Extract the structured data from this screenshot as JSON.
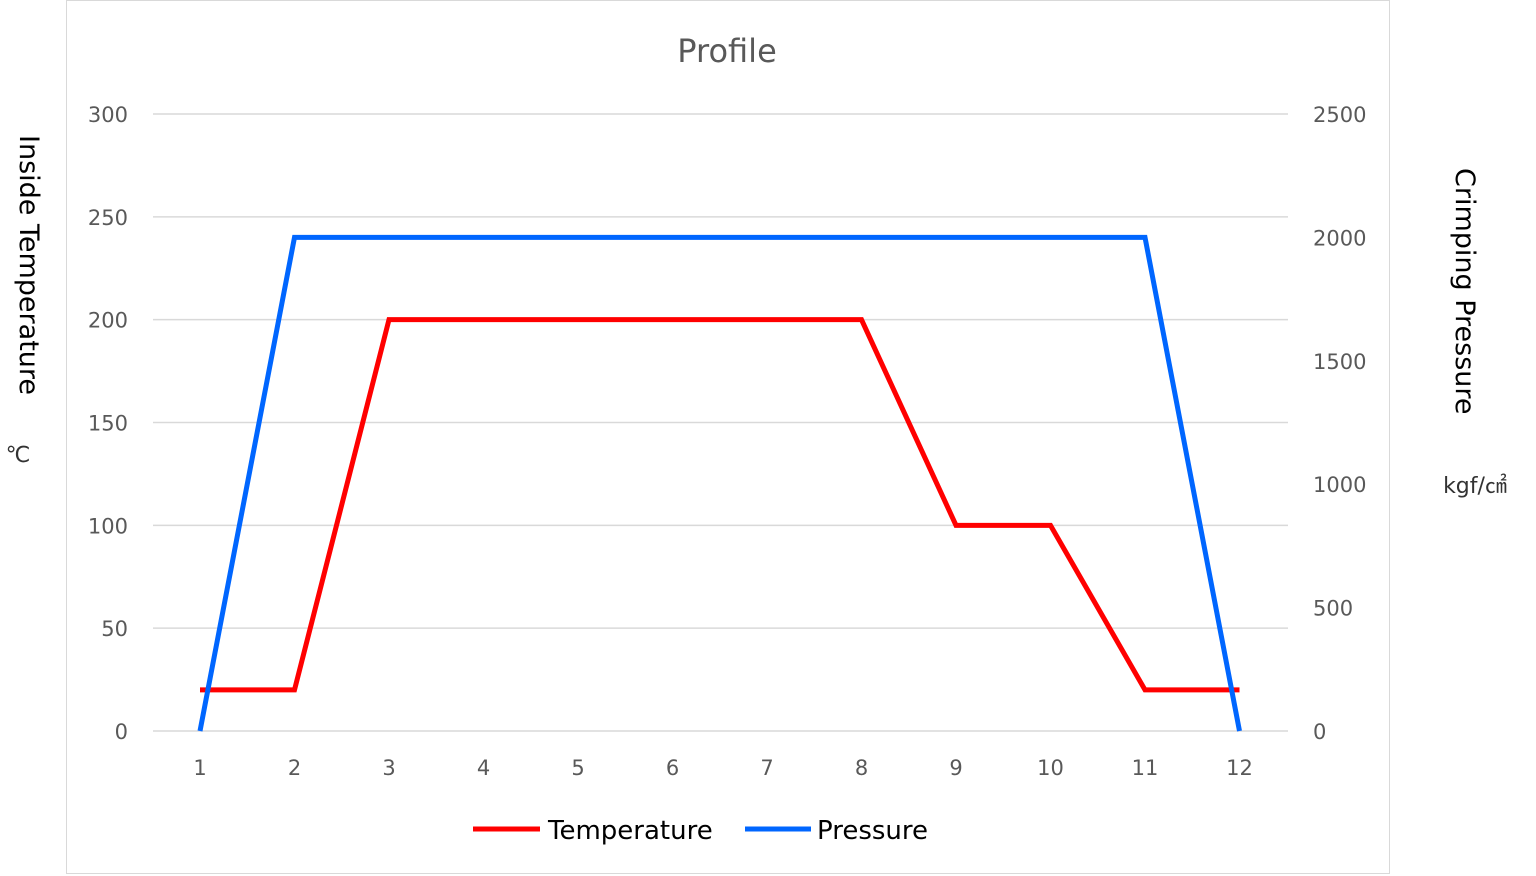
{
  "chart_data": {
    "type": "line",
    "title": "Profile",
    "categories": [
      "1",
      "2",
      "3",
      "4",
      "5",
      "6",
      "7",
      "8",
      "9",
      "10",
      "11",
      "12"
    ],
    "y_left": {
      "label": "Inside Temperature",
      "unit": "℃",
      "range": [
        0,
        300
      ],
      "ticks": [
        "0",
        "50",
        "100",
        "150",
        "200",
        "250",
        "300"
      ]
    },
    "y_right": {
      "label": "Crimping Pressure",
      "unit": "kgf/㎠",
      "range": [
        0,
        2500
      ],
      "ticks": [
        "0",
        "500",
        "1000",
        "1500",
        "2000",
        "2500"
      ]
    },
    "grid": true,
    "legend_position": "bottom",
    "series": [
      {
        "name": "Temperature",
        "axis": "left",
        "color": "#ff0000",
        "values": [
          20,
          20,
          200,
          200,
          200,
          200,
          200,
          200,
          100,
          100,
          20,
          20
        ]
      },
      {
        "name": "Pressure",
        "axis": "right",
        "color": "#0066ff",
        "values": [
          0,
          2000,
          2000,
          2000,
          2000,
          2000,
          2000,
          2000,
          2000,
          2000,
          2000,
          0
        ]
      }
    ]
  }
}
